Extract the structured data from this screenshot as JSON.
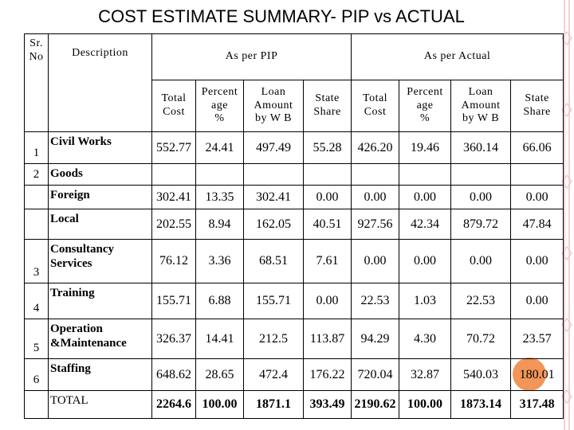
{
  "header": {
    "title": "COST ESTIMATE SUMMARY- PIP vs ACTUAL"
  },
  "table": {
    "head": {
      "sr": "Sr.\nNo",
      "description": "Description",
      "groups": [
        "As per PIP",
        "As per Actual"
      ],
      "columns": [
        "Total\nCost",
        "Percent\nage\n%",
        "Loan\nAmount\nby W B",
        "State\nShare",
        "Total\nCost",
        "Percent\nage\n%",
        "Loan\nAmount\nby W B",
        "State\nShare"
      ]
    },
    "rows": [
      {
        "sr": "1",
        "description": "Civil Works",
        "values": [
          "552.77",
          "24.41",
          "497.49",
          "55.28",
          "426.20",
          "19.46",
          "360.14",
          "66.06"
        ]
      },
      {
        "sr": "2",
        "description": "Goods"
      },
      {
        "description": "Foreign",
        "values": [
          "302.41",
          "13.35",
          "302.41",
          "0.00",
          "0.00",
          "0.00",
          "0.00",
          "0.00"
        ]
      },
      {
        "description": "Local",
        "values": [
          "202.55",
          "8.94",
          "162.05",
          "40.51",
          "927.56",
          "42.34",
          "879.72",
          "47.84"
        ]
      },
      {
        "sr": "3",
        "description": "Consultancy\nServices",
        "values": [
          "76.12",
          "3.36",
          "68.51",
          "7.61",
          "0.00",
          "0.00",
          "0.00",
          "0.00"
        ]
      },
      {
        "sr": "4",
        "description": "Training",
        "values": [
          "155.71",
          "6.88",
          "155.71",
          "0.00",
          "22.53",
          "1.03",
          "22.53",
          "0.00"
        ]
      },
      {
        "sr": "5",
        "description": "Operation\n&Maintenance",
        "values": [
          "326.37",
          "14.41",
          "212.5",
          "113.87",
          "94.29",
          "4.30",
          "70.72",
          "23.57"
        ]
      },
      {
        "sr": "6",
        "description": "Staffing",
        "values": [
          "648.62",
          "28.65",
          "472.4",
          "176.22",
          "720.04",
          "32.87",
          "540.03",
          "180.01"
        ]
      },
      {
        "description": "TOTAL",
        "values": [
          "2264.6",
          "100.00",
          "1871.1",
          "393.49",
          "2190.62",
          "100.00",
          "1873.14",
          "317.48"
        ]
      }
    ]
  }
}
